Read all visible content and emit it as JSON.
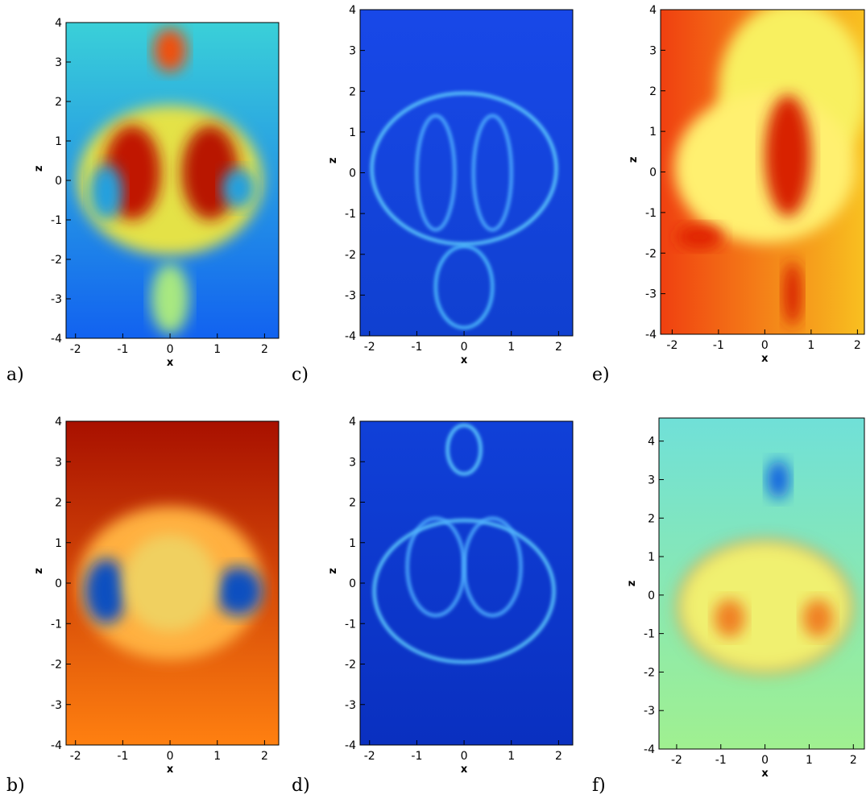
{
  "chart_data": [
    {
      "type": "field",
      "panel": "a)",
      "xlabel": "x",
      "ylabel": "z",
      "xlim": [
        -2.2,
        2.3
      ],
      "ylim": [
        -4,
        4
      ],
      "xticks": [
        -2,
        -1,
        0,
        1,
        2
      ],
      "yticks": [
        -4,
        -3,
        -2,
        -1,
        0,
        1,
        2,
        3,
        4
      ]
    },
    {
      "type": "field",
      "panel": "b)",
      "xlabel": "x",
      "ylabel": "z",
      "xlim": [
        -2.2,
        2.3
      ],
      "ylim": [
        -4,
        4
      ],
      "xticks": [
        -2,
        -1,
        0,
        1,
        2
      ],
      "yticks": [
        -4,
        -3,
        -2,
        -1,
        0,
        1,
        2,
        3,
        4
      ]
    },
    {
      "type": "field",
      "panel": "c)",
      "xlabel": "x",
      "ylabel": "z",
      "xlim": [
        -2.2,
        2.3
      ],
      "ylim": [
        -4,
        4
      ],
      "xticks": [
        -2,
        -1,
        0,
        1,
        2
      ],
      "yticks": [
        -4,
        -3,
        -2,
        -1,
        0,
        1,
        2,
        3,
        4
      ]
    },
    {
      "type": "field",
      "panel": "d)",
      "xlabel": "x",
      "ylabel": "z",
      "xlim": [
        -2.2,
        2.3
      ],
      "ylim": [
        -4,
        4
      ],
      "xticks": [
        -2,
        -1,
        0,
        1,
        2
      ],
      "yticks": [
        -4,
        -3,
        -2,
        -1,
        0,
        1,
        2,
        3,
        4
      ]
    },
    {
      "type": "field",
      "panel": "e)",
      "xlabel": "x",
      "ylabel": "z",
      "xlim": [
        -2.25,
        2.15
      ],
      "ylim": [
        -4,
        4
      ],
      "xticks": [
        -2,
        -1,
        0,
        1,
        2
      ],
      "yticks": [
        -4,
        -3,
        -2,
        -1,
        0,
        1,
        2,
        3,
        4
      ]
    },
    {
      "type": "field",
      "panel": "f)",
      "xlabel": "x",
      "ylabel": "z",
      "xlim": [
        -2.4,
        2.25
      ],
      "ylim": [
        -4,
        4.6
      ],
      "xticks": [
        -2,
        -1,
        0,
        1,
        2
      ],
      "yticks": [
        -4,
        -3,
        -2,
        -1,
        0,
        1,
        2,
        3,
        4
      ]
    }
  ]
}
